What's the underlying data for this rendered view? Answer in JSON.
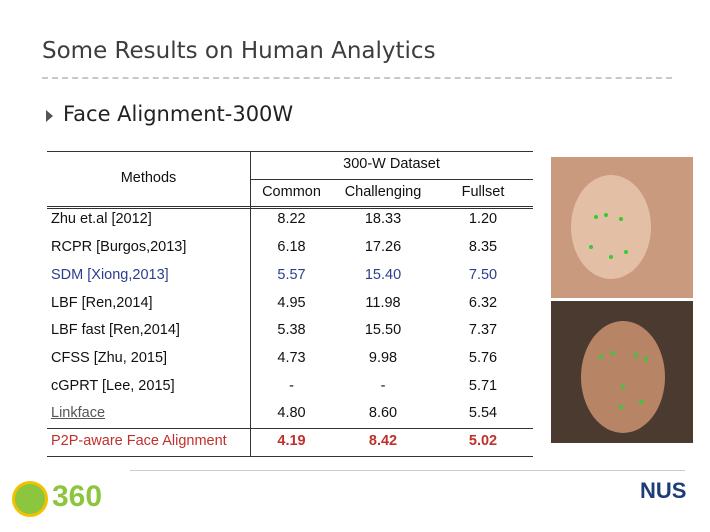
{
  "header": {
    "title": "Some Results on Human Analytics"
  },
  "section": {
    "title": "Face Alignment-300W"
  },
  "table": {
    "methods_header": "Methods",
    "group_header": "300-W Dataset",
    "columns": [
      "Common",
      "Challenging",
      "Fullset"
    ],
    "rows": [
      [
        "Zhu et.al [2012]",
        "8.22",
        "18.33",
        "1.20"
      ],
      [
        "RCPR [Burgos,2013]",
        "6.18",
        "17.26",
        "8.35"
      ],
      [
        "SDM [Xiong,2013]",
        "5.57",
        "15.40",
        "7.50"
      ],
      [
        "LBF [Ren,2014]",
        "4.95",
        "11.98",
        "6.32"
      ],
      [
        "LBF fast [Ren,2014]",
        "5.38",
        "15.50",
        "7.37"
      ],
      [
        "CFSS [Zhu, 2015]",
        "4.73",
        "9.98",
        "5.76"
      ],
      [
        "cGPRT [Lee, 2015]",
        "-",
        "-",
        "5.71"
      ],
      [
        "Linkface",
        "4.80",
        "8.60",
        "5.54"
      ],
      [
        "P2P-aware Face Alignment",
        "4.19",
        "8.42",
        "5.02"
      ]
    ]
  },
  "footer": {
    "left_logo": "360",
    "right_logo": "NUS"
  }
}
